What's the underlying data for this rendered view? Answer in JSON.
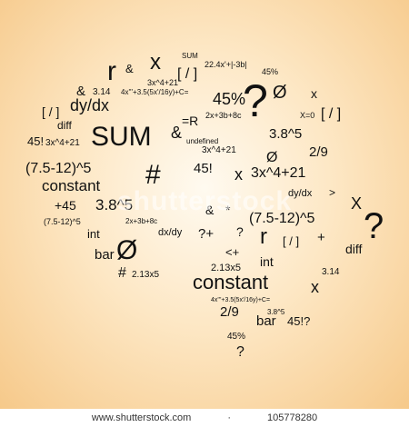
{
  "artwork": {
    "symbols": [
      "SUM",
      "22.4x'+|-3b|",
      "45%",
      "r",
      "&",
      "x",
      "[ / ]",
      "3x^4+21",
      "&",
      "3.14",
      "4x'''+3.5(5x'/16y)+C=",
      "45%",
      "?",
      "Ø",
      "x",
      "dy/dx",
      "[ / ]",
      "diff",
      "SUM",
      "&",
      "=R",
      "2x+3b+8c",
      "X=0",
      "[ / ]",
      "45!",
      "3x^4+21",
      "undefined",
      "3.8^5",
      "2/9",
      "3x^4+21",
      "(7.5-12)^5",
      "#",
      "45!",
      "Ø",
      "x",
      "3x^4+21",
      "constant",
      "+45",
      "3.8^5",
      "dy/dx",
      ">",
      "X",
      "(7.5-12)^5",
      "2x+3b+8c",
      "&",
      "*",
      "(7.5-12)^5",
      "?",
      "int",
      "dx/dy",
      "?+",
      "?",
      "r",
      "[ / ]",
      "+",
      "bar",
      "Ø",
      "<+",
      "diff",
      "#",
      "2.13x5",
      "2.13x5",
      "int",
      "3.14",
      "constant",
      "x",
      "4x'''+3.5(5x'/16y)+C=",
      "2/9",
      "3.8^5",
      "bar",
      "45!?",
      "45%",
      "?"
    ],
    "watermark": "shutterstock"
  },
  "footer": {
    "site": "www.shutterstock.com",
    "sep": "·",
    "image_id": "105778280"
  },
  "colors": {
    "ink": "#111111",
    "bg_center": "#fffaf0",
    "bg_edge": "#f6c98a"
  }
}
